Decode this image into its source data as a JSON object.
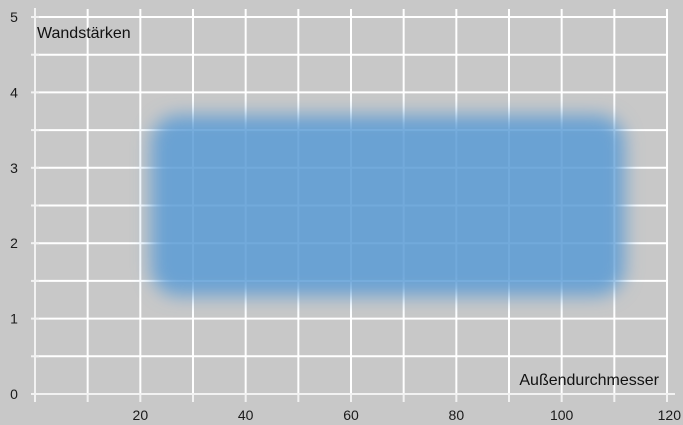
{
  "chart_data": {
    "type": "area",
    "title": "",
    "xlabel": "Außendurchmesser",
    "ylabel": "Wandstärken",
    "xlim": [
      0,
      120
    ],
    "ylim": [
      0,
      5
    ],
    "x_ticks": [
      20,
      40,
      60,
      80,
      100,
      120
    ],
    "y_ticks": [
      0,
      1,
      2,
      3,
      4,
      5
    ],
    "grid": true,
    "region": {
      "x_min": 22,
      "x_max": 112,
      "y_min": 1.3,
      "y_max": 3.7,
      "color": "#5b9bd5"
    },
    "colors": {
      "background": "#c8c8c8",
      "grid": "#ffffff",
      "axis": "#f2f2f2",
      "text": "#1a1a1a"
    }
  }
}
